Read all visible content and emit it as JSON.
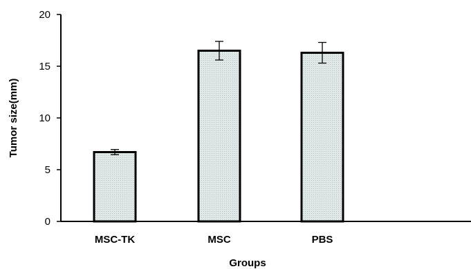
{
  "chart_data": {
    "type": "bar",
    "title": "",
    "xlabel": "Groups",
    "ylabel": "Tumor size(mm)",
    "categories": [
      "MSC-TK",
      "MSC",
      "PBS"
    ],
    "values": [
      6.7,
      16.5,
      16.3
    ],
    "errors": [
      0.25,
      0.9,
      1.0
    ],
    "ylim": [
      0,
      20
    ],
    "yticks": [
      "0",
      "5",
      "10",
      "15",
      "20"
    ],
    "grid": false,
    "legend": "none",
    "bar_fill": "#dfe8e6",
    "bar_edge": "#000000"
  }
}
